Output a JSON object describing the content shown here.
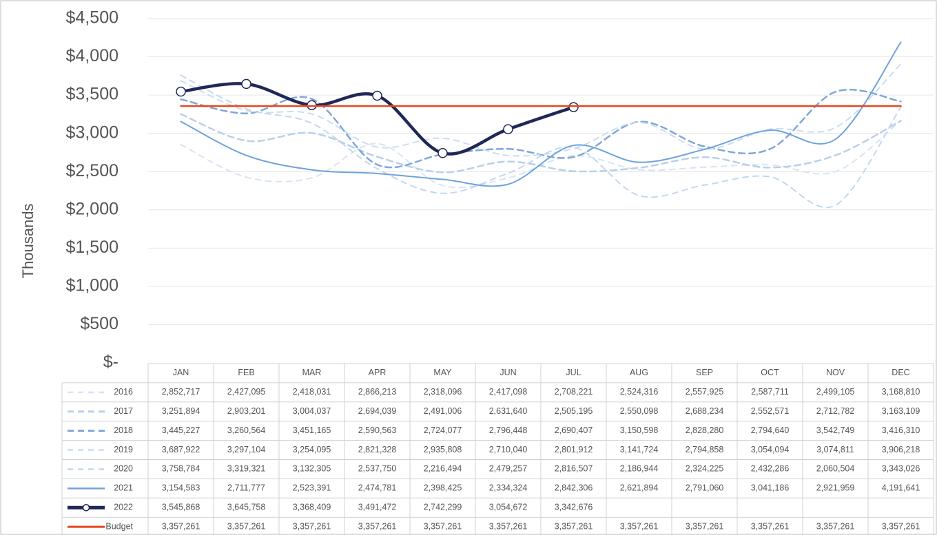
{
  "chart_data": {
    "type": "line",
    "ylabel": "Thousands",
    "categories": [
      "JAN",
      "FEB",
      "MAR",
      "APR",
      "MAY",
      "JUN",
      "JUL",
      "AUG",
      "SEP",
      "OCT",
      "NOV",
      "DEC"
    ],
    "ylim": [
      0,
      4500000
    ],
    "yticks": [
      {
        "value": 0,
        "label": "$-"
      },
      {
        "value": 500000,
        "label": "$500"
      },
      {
        "value": 1000000,
        "label": "$1,000"
      },
      {
        "value": 1500000,
        "label": "$1,500"
      },
      {
        "value": 2000000,
        "label": "$2,000"
      },
      {
        "value": 2500000,
        "label": "$2,500"
      },
      {
        "value": 3000000,
        "label": "$3,000"
      },
      {
        "value": 3500000,
        "label": "$3,500"
      },
      {
        "value": 4000000,
        "label": "$4,000"
      },
      {
        "value": 4500000,
        "label": "$4,500"
      }
    ],
    "grid": true,
    "series": [
      {
        "name": "2016",
        "color": "#d6e4f4",
        "style": "light-dash",
        "values": [
          2852717,
          2427095,
          2418031,
          2866213,
          2318096,
          2417098,
          2708221,
          2524316,
          2557925,
          2587711,
          2499105,
          3168810
        ],
        "value_labels": [
          "2,852,717",
          "2,427,095",
          "2,418,031",
          "2,866,213",
          "2,318,096",
          "2,417,098",
          "2,708,221",
          "2,524,316",
          "2,557,925",
          "2,587,711",
          "2,499,105",
          "3,168,810"
        ]
      },
      {
        "name": "2017",
        "color": "#b7d0ec",
        "style": "dash",
        "values": [
          3251894,
          2903201,
          3004037,
          2694039,
          2491006,
          2631640,
          2505195,
          2550098,
          2688234,
          2552571,
          2712782,
          3163109
        ],
        "value_labels": [
          "3,251,894",
          "2,903,201",
          "3,004,037",
          "2,694,039",
          "2,491,006",
          "2,631,640",
          "2,505,195",
          "2,550,098",
          "2,688,234",
          "2,552,571",
          "2,712,782",
          "3,163,109"
        ]
      },
      {
        "name": "2018",
        "color": "#7ea7d8",
        "style": "dash",
        "values": [
          3445227,
          3260564,
          3451165,
          2590563,
          2724077,
          2796448,
          2690407,
          3150598,
          2828280,
          2794640,
          3542749,
          3416310
        ],
        "value_labels": [
          "3,445,227",
          "3,260,564",
          "3,451,165",
          "2,590,563",
          "2,724,077",
          "2,796,448",
          "2,690,407",
          "3,150,598",
          "2,828,280",
          "2,794,640",
          "3,542,749",
          "3,416,310"
        ]
      },
      {
        "name": "2019",
        "color": "#cadcf1",
        "style": "light-dash",
        "values": [
          3687922,
          3297104,
          3254095,
          2821328,
          2935808,
          2710040,
          2801912,
          3141724,
          2794858,
          3054094,
          3074811,
          3906218
        ],
        "value_labels": [
          "3,687,922",
          "3,297,104",
          "3,254,095",
          "2,821,328",
          "2,935,808",
          "2,710,040",
          "2,801,912",
          "3,141,724",
          "2,794,858",
          "3,054,094",
          "3,074,811",
          "3,906,218"
        ]
      },
      {
        "name": "2020",
        "color": "#c2d7ef",
        "style": "light-dash",
        "values": [
          3758784,
          3319321,
          3132305,
          2537750,
          2216494,
          2479257,
          2816507,
          2186944,
          2324225,
          2432286,
          2060504,
          3343026
        ],
        "value_labels": [
          "3,758,784",
          "3,319,321",
          "3,132,305",
          "2,537,750",
          "2,216,494",
          "2,479,257",
          "2,816,507",
          "2,186,944",
          "2,324,225",
          "2,432,286",
          "2,060,504",
          "3,343,026"
        ]
      },
      {
        "name": "2021",
        "color": "#6ea2dc",
        "style": "solid",
        "values": [
          3154583,
          2711777,
          2523391,
          2474781,
          2398425,
          2334324,
          2842306,
          2621894,
          2791060,
          3041186,
          2921959,
          4191641
        ],
        "value_labels": [
          "3,154,583",
          "2,711,777",
          "2,523,391",
          "2,474,781",
          "2,398,425",
          "2,334,324",
          "2,842,306",
          "2,621,894",
          "2,791,060",
          "3,041,186",
          "2,921,959",
          "4,191,641"
        ]
      },
      {
        "name": "2022",
        "color": "#1f2857",
        "style": "bold",
        "markers": true,
        "values": [
          3545868,
          3645758,
          3368409,
          3491472,
          2742299,
          3054672,
          3342676,
          null,
          null,
          null,
          null,
          null
        ],
        "value_labels": [
          "3,545,868",
          "3,645,758",
          "3,368,409",
          "3,491,472",
          "2,742,299",
          "3,054,672",
          "3,342,676",
          null,
          null,
          null,
          null,
          null
        ]
      },
      {
        "name": "Budget",
        "color": "#e8461c",
        "style": "straight",
        "values": [
          3357261,
          3357261,
          3357261,
          3357261,
          3357261,
          3357261,
          3357261,
          3357261,
          3357261,
          3357261,
          3357261,
          3357261
        ],
        "value_labels": [
          "3,357,261",
          "3,357,261",
          "3,357,261",
          "3,357,261",
          "3,357,261",
          "3,357,261",
          "3,357,261",
          "3,357,261",
          "3,357,261",
          "3,357,261",
          "3,357,261",
          "3,357,261"
        ]
      }
    ]
  }
}
